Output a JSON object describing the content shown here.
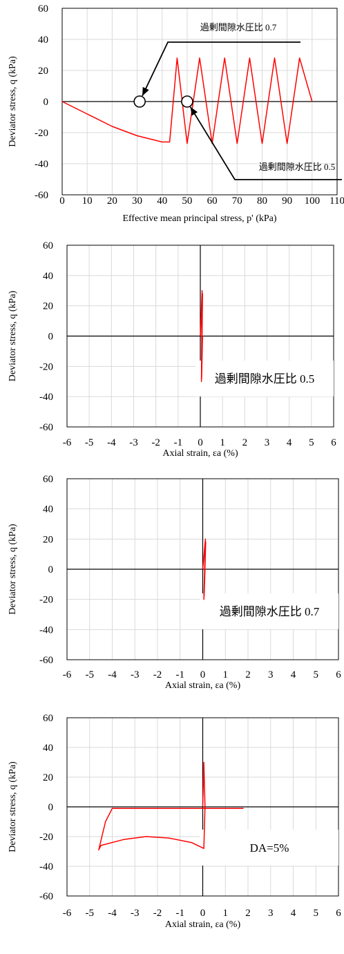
{
  "colors": {
    "series": "#ff0000",
    "grid": "#d9d9d9",
    "axis": "#000000",
    "annotation_box_border": "#000000"
  },
  "chart_data": [
    {
      "type": "line",
      "xlabel": "Effective mean principal stress, p' (kPa)",
      "ylabel": "Deviator stress, q (kPa)",
      "xlim": [
        0,
        110
      ],
      "ylim": [
        -60,
        60
      ],
      "xticks": [
        0,
        10,
        20,
        30,
        40,
        50,
        60,
        70,
        80,
        90,
        100,
        110
      ],
      "yticks": [
        -60,
        -40,
        -20,
        0,
        20,
        40,
        60
      ],
      "grid": true,
      "annotations": [
        {
          "text": "過剰間隙水圧比 0.7",
          "marker": [
            31,
            0
          ]
        },
        {
          "text": "過剰間隙水圧比 0.5",
          "marker": [
            50,
            0
          ]
        }
      ],
      "series": [
        {
          "name": "",
          "x": [
            0,
            10,
            20,
            30,
            40,
            43,
            46,
            50,
            55,
            60,
            65,
            70,
            75,
            80,
            85,
            90,
            95,
            100
          ],
          "y": [
            0,
            -8,
            -16,
            -22,
            -26,
            -26,
            28,
            -27,
            28,
            -27,
            28,
            -27,
            28,
            -27,
            28,
            -27,
            28,
            0
          ]
        }
      ]
    },
    {
      "type": "line",
      "xlabel": "Axial strain, εa (%)",
      "ylabel": "Deviator stress, q (kPa)",
      "xlim": [
        -6,
        6
      ],
      "ylim": [
        -60,
        60
      ],
      "xticks": [
        -6,
        -5,
        -4,
        -3,
        -2,
        -1,
        0,
        1,
        2,
        3,
        4,
        5,
        6
      ],
      "yticks": [
        -60,
        -40,
        -20,
        0,
        20,
        40,
        60
      ],
      "grid": true,
      "label_box": "過剰間隙水圧比 0.5",
      "series": [
        {
          "name": "",
          "x": [
            0.0,
            0.08,
            0.05,
            0.1,
            0.06,
            0.1
          ],
          "y": [
            0,
            30,
            -30,
            28,
            -28,
            0
          ]
        }
      ]
    },
    {
      "type": "line",
      "xlabel": "Axial strain, εa (%)",
      "ylabel": "Deviator stress, q (kPa)",
      "xlim": [
        -6,
        6
      ],
      "ylim": [
        -60,
        60
      ],
      "xticks": [
        -6,
        -5,
        -4,
        -3,
        -2,
        -1,
        0,
        1,
        2,
        3,
        4,
        5,
        6
      ],
      "yticks": [
        -60,
        -40,
        -20,
        0,
        20,
        40,
        60
      ],
      "grid": true,
      "label_box": "過剰間隙水圧比 0.7",
      "series": [
        {
          "name": "",
          "x": [
            0.0,
            0.12,
            0.05,
            0.13,
            0.06,
            0.1
          ],
          "y": [
            0,
            20,
            -20,
            18,
            -18,
            0
          ]
        }
      ]
    },
    {
      "type": "line",
      "xlabel": "Axial strain, εa (%)",
      "ylabel": "Deviator stress, q (kPa)",
      "xlim": [
        -6,
        6
      ],
      "ylim": [
        -60,
        60
      ],
      "xticks": [
        -6,
        -5,
        -4,
        -3,
        -2,
        -1,
        0,
        1,
        2,
        3,
        4,
        5,
        6
      ],
      "yticks": [
        -60,
        -40,
        -20,
        0,
        20,
        40,
        60
      ],
      "grid": true,
      "label_box": "DA=5%",
      "series": [
        {
          "name": "",
          "x": [
            0.0,
            0.05,
            0.1,
            0.05,
            -0.5,
            -1.5,
            -2.5,
            -3.5,
            -4.5,
            -4.6,
            -4.3,
            -4.0,
            -3.0,
            -2.0,
            -1.0,
            0.0,
            1.0,
            1.8
          ],
          "y": [
            0,
            30,
            0,
            -28,
            -24,
            -21,
            -20,
            -22,
            -26,
            -29,
            -10,
            -1,
            -1,
            -1,
            -1,
            -1,
            -1,
            -1
          ]
        }
      ]
    }
  ]
}
